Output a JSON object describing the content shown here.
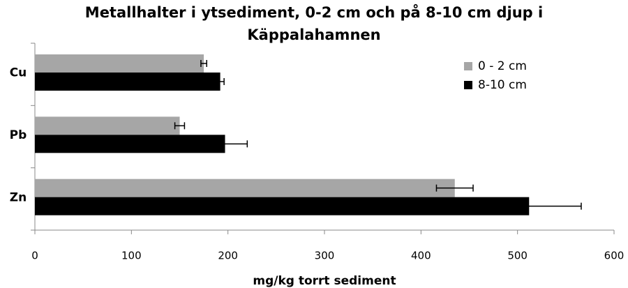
{
  "chart_data": {
    "type": "hbar",
    "title": "Metallhalter i ytsediment, 0-2 cm och på 8-10 cm djup i Käppalahamnen",
    "x_label": "mg/kg torrt sediment",
    "categories": [
      "Cu",
      "Pb",
      "Zn"
    ],
    "series": [
      {
        "name": "0 - 2 cm",
        "color": "#a6a6a6",
        "values": [
          175,
          150,
          435
        ],
        "errors": [
          3,
          5,
          19
        ]
      },
      {
        "name": "8-10 cm",
        "color": "#000000",
        "values": [
          192,
          197,
          512
        ],
        "errors": [
          4,
          23,
          54
        ]
      }
    ],
    "xlim": [
      0,
      600
    ],
    "xticks": [
      0,
      100,
      200,
      300,
      400,
      500,
      600
    ]
  }
}
